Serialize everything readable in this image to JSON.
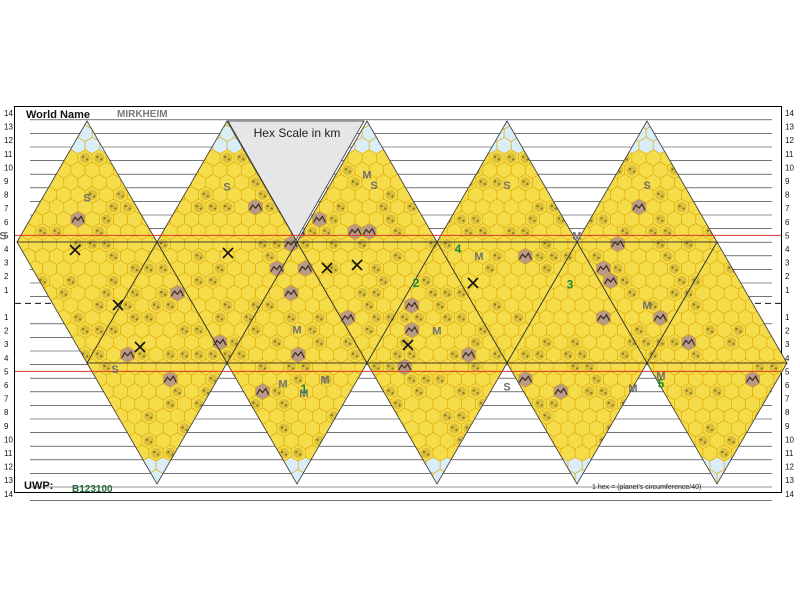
{
  "header": {
    "world_name_label": "World Name",
    "world_name_value": "MIRKHEIM",
    "scale_title": "Hex Scale in km"
  },
  "footer": {
    "uwp_label": "UWP:",
    "uwp_value": "B123100",
    "footnote": "1 hex = (planet's circumference/40)"
  },
  "row_numbers": [
    "14",
    "13",
    "12",
    "11",
    "10",
    "9",
    "8",
    "7",
    "6",
    "5",
    "4",
    "3",
    "2",
    "1",
    "",
    "1",
    "2",
    "3",
    "4",
    "5",
    "6",
    "7",
    "8",
    "9",
    "10",
    "11",
    "12",
    "13",
    "14"
  ],
  "terrain_letters": [
    {
      "t": "S",
      "col": 0,
      "row": 7.5
    },
    {
      "t": "S",
      "col": -0.6,
      "row": 4.7
    },
    {
      "t": "S",
      "col": 0.2,
      "row": -5.1
    },
    {
      "t": "S",
      "col": 1,
      "row": 8.3
    },
    {
      "t": "M",
      "col": 2,
      "row": 9.2
    },
    {
      "t": "S",
      "col": 2.05,
      "row": 8.4
    },
    {
      "t": "M",
      "col": 1.5,
      "row": -2.2
    },
    {
      "t": "M",
      "col": 1.4,
      "row": -6.2
    },
    {
      "t": "M",
      "col": 1.55,
      "row": -6.9
    },
    {
      "t": "M",
      "col": 1.7,
      "row": -5.9
    },
    {
      "t": "M",
      "col": 2.5,
      "row": -2.3
    },
    {
      "t": "M",
      "col": 2.8,
      "row": 3.2
    },
    {
      "t": "S",
      "col": 3,
      "row": 8.4
    },
    {
      "t": "M",
      "col": 3.5,
      "row": 4.7
    },
    {
      "t": "S",
      "col": 3,
      "row": -6.4
    },
    {
      "t": "M",
      "col": 4,
      "row": -0.4
    },
    {
      "t": "S",
      "col": 4,
      "row": 8.4
    },
    {
      "t": "M",
      "col": 3.9,
      "row": -6.5
    },
    {
      "t": "M",
      "col": 4.1,
      "row": -5.6
    },
    {
      "t": "S",
      "col": 5.4,
      "row": -1.4
    }
  ],
  "numbered_sites": [
    {
      "n": "2",
      "col": 2.35,
      "row": 1.2
    },
    {
      "n": "4",
      "col": 2.65,
      "row": 3.7
    },
    {
      "n": "3",
      "col": 3.45,
      "row": 1.1
    },
    {
      "n": "1",
      "col": 1.55,
      "row": -6.6
    },
    {
      "n": "5",
      "col": 4.1,
      "row": -6.2
    }
  ],
  "colors": {
    "hex_fill": "#f5dc4a",
    "hex_stroke": "#e0a800",
    "ice_fill": "#d9eef7",
    "mountain_fill": "#b89a86",
    "rough_fill": "#d6bb3a",
    "letter_color": "#707070",
    "number_color": "#1f8a3a",
    "red_line": "#d83a2a",
    "scale_fill": "#e6e6e6"
  },
  "icons": [
    "mine-icon",
    "mountain-icon",
    "rough-terrain-icon",
    "ice-cap-hex"
  ]
}
